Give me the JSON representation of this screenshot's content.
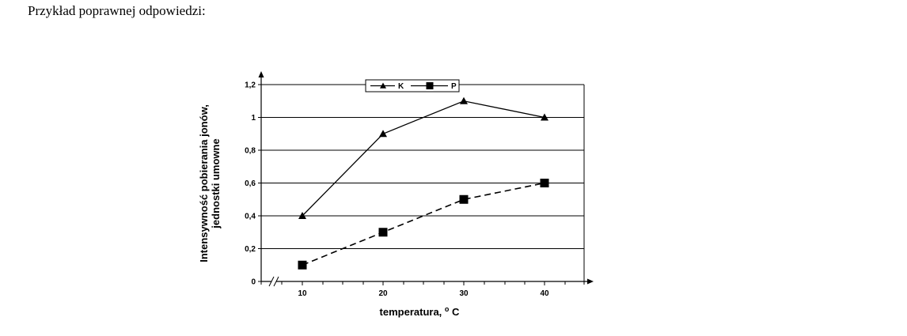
{
  "intro_text": "Przykład poprawnej odpowiedzi:",
  "chart_data": {
    "type": "line",
    "x": [
      10,
      20,
      30,
      40
    ],
    "series": [
      {
        "name": "K",
        "values": [
          0.4,
          0.9,
          1.1,
          1.0
        ],
        "marker": "triangle",
        "line": "solid"
      },
      {
        "name": "P",
        "values": [
          0.1,
          0.3,
          0.5,
          0.6
        ],
        "marker": "square",
        "line": "dashed"
      }
    ],
    "ylim": [
      0,
      1.2
    ],
    "yticks": [
      "0",
      "0,2",
      "0,4",
      "0,6",
      "0,8",
      "1",
      "1,2"
    ],
    "xticks": [
      "10",
      "20",
      "30",
      "40"
    ],
    "xlabel": "temperatura,",
    "xlabel_unit": "C",
    "xlabel_unit_sup": "o",
    "ylabel": [
      "Intensywność pobierania jonów,",
      "jednostki umowne"
    ],
    "grid": "horizontal",
    "legend": "top",
    "axis_break": "x",
    "colors": {
      "line": "#000000",
      "grid": "#000000"
    }
  }
}
